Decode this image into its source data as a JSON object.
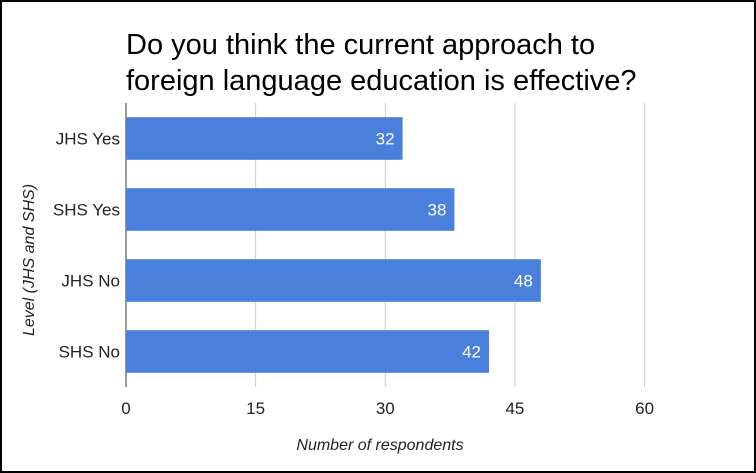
{
  "chart_data": {
    "type": "bar",
    "orientation": "horizontal",
    "title_lines": [
      "Do you think the current approach to",
      "foreign language education is effective?"
    ],
    "title": "Do you think the current approach to foreign language education is effective?",
    "categories": [
      "JHS Yes",
      "SHS Yes",
      "JHS No",
      "SHS No"
    ],
    "values": [
      32,
      38,
      48,
      42
    ],
    "xlabel": "Number of respondents",
    "ylabel": "Level (JHS and SHS)",
    "xlim": [
      0,
      70
    ],
    "xticks": [
      0,
      15,
      30,
      45,
      60
    ],
    "bar_color": "#4a7fdc",
    "grid": true,
    "legend": "none",
    "data_labels": true
  }
}
